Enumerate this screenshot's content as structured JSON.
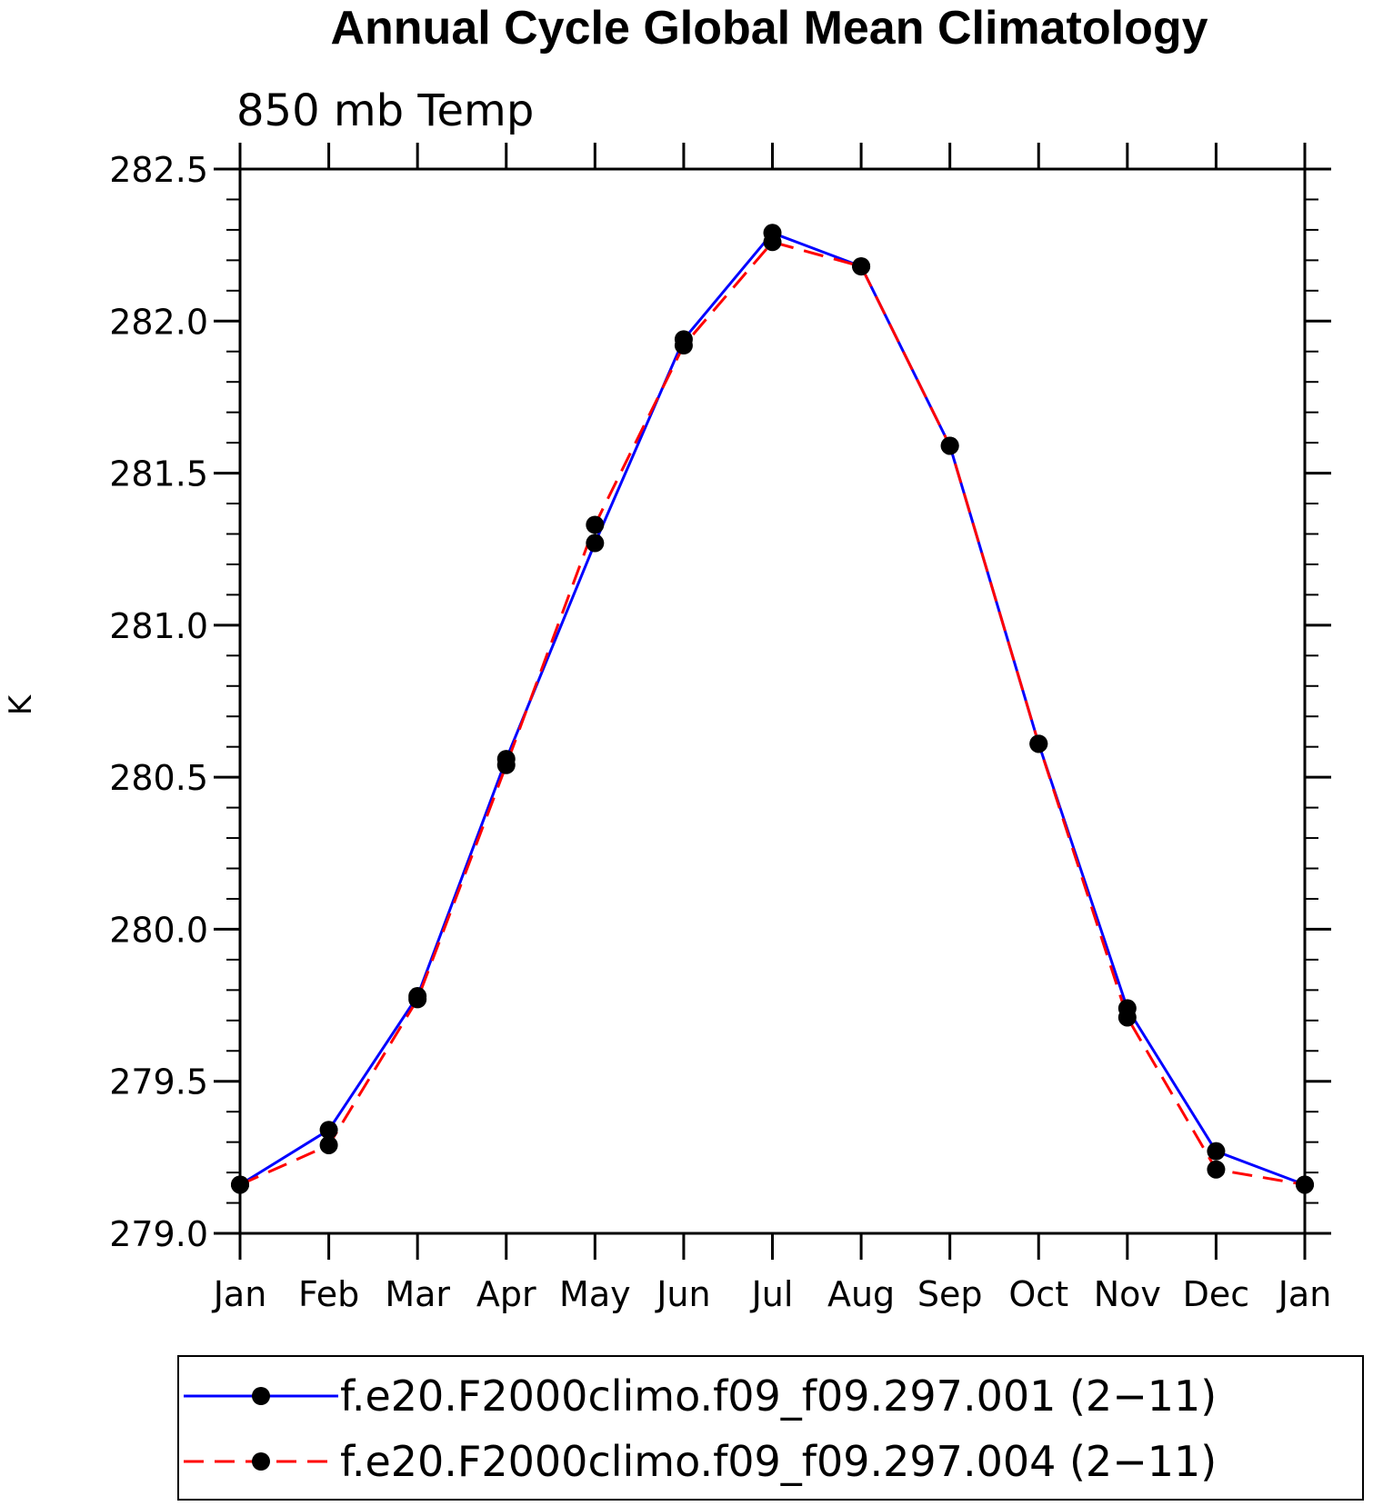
{
  "chart_data": {
    "type": "line",
    "title": "Annual Cycle Global Mean Climatology",
    "subtitle": "850 mb Temp",
    "xlabel": "",
    "ylabel": "K",
    "categories": [
      "Jan",
      "Feb",
      "Mar",
      "Apr",
      "May",
      "Jun",
      "Jul",
      "Aug",
      "Sep",
      "Oct",
      "Nov",
      "Dec",
      "Jan"
    ],
    "ylim": [
      279.0,
      282.5
    ],
    "yticks": [
      "279.0",
      "279.5",
      "280.0",
      "280.5",
      "281.0",
      "281.5",
      "282.0",
      "282.5"
    ],
    "ytick_values": [
      279.0,
      279.5,
      280.0,
      280.5,
      281.0,
      281.5,
      282.0,
      282.5
    ],
    "y_minor_step": 0.1,
    "grid": false,
    "legend_position": "bottom",
    "series": [
      {
        "name": "f.e20.F2000climo.f09_f09.297.001 (2−11)",
        "color": "#0000ff",
        "dash": "solid",
        "marker": "filled-circle",
        "values": [
          279.16,
          279.34,
          279.78,
          280.56,
          281.27,
          281.94,
          282.29,
          282.18,
          281.59,
          280.61,
          279.74,
          279.27,
          279.16
        ]
      },
      {
        "name": "f.e20.F2000climo.f09_f09.297.004 (2−11)",
        "color": "#ff0000",
        "dash": "dashed",
        "marker": "filled-circle",
        "values": [
          279.16,
          279.29,
          279.77,
          280.54,
          281.33,
          281.92,
          282.26,
          282.18,
          281.59,
          280.61,
          279.71,
          279.21,
          279.16
        ]
      }
    ]
  }
}
